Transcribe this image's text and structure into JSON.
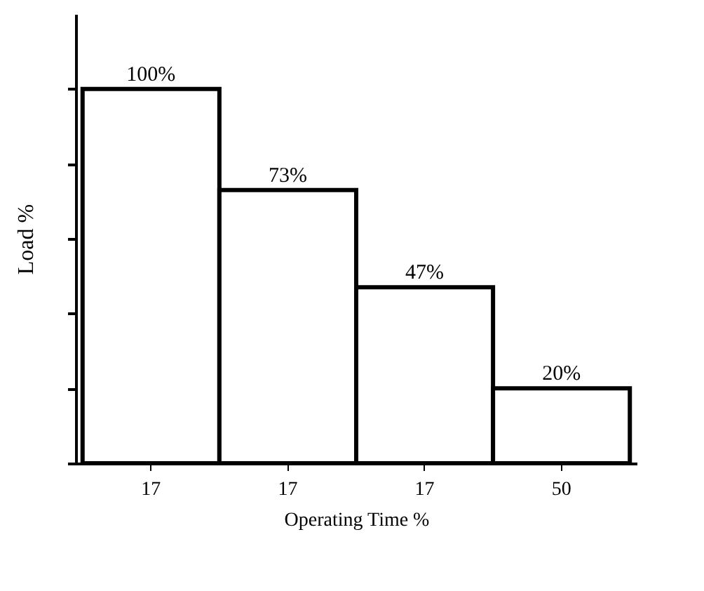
{
  "chart_data": {
    "type": "bar",
    "xlabel": "Operating Time %",
    "ylabel": "Load %",
    "categories": [
      "17",
      "17",
      "17",
      "50"
    ],
    "values": [
      100,
      73,
      47,
      20
    ],
    "value_labels": [
      "100%",
      "73%",
      "47%",
      "20%"
    ],
    "color": "#ffffff",
    "ylim": [
      0,
      120
    ],
    "yticks": [
      {
        "value": 0,
        "label": null
      },
      {
        "value": 20,
        "label": null
      },
      {
        "value": 40,
        "label": null
      },
      {
        "value": 60,
        "label": null
      },
      {
        "value": 80,
        "label": null
      },
      {
        "value": 100,
        "label": null
      }
    ],
    "grid": false
  }
}
